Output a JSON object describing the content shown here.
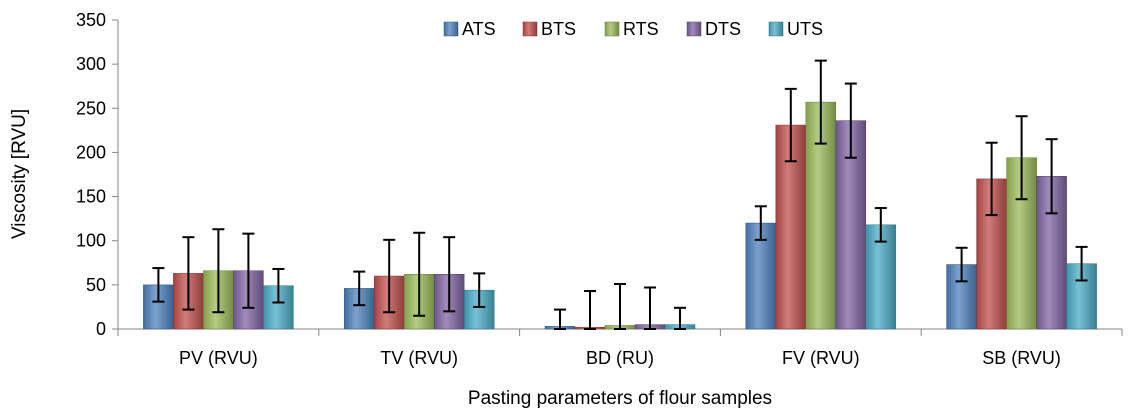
{
  "chart_data": {
    "type": "bar",
    "title": "",
    "xlabel": "Pasting parameters of flour samples",
    "ylabel": "Viscosity [RVU]",
    "ylim": [
      0,
      350
    ],
    "yticks": [
      0,
      50,
      100,
      150,
      200,
      250,
      300,
      350
    ],
    "grid": false,
    "legend_position": "top-center",
    "categories": [
      "PV (RVU)",
      "TV (RVU)",
      "BD (RU)",
      "FV (RVU)",
      "SB (RVU)"
    ],
    "series": [
      {
        "name": "ATS",
        "color": "#4F81BD",
        "values": [
          50,
          46,
          3,
          120,
          73
        ],
        "errors": [
          19,
          19,
          19,
          19,
          19
        ]
      },
      {
        "name": "BTS",
        "color": "#C0504D",
        "values": [
          63,
          60,
          2,
          231,
          170
        ],
        "errors": [
          41,
          41,
          41,
          41,
          41
        ]
      },
      {
        "name": "RTS",
        "color": "#9BBB59",
        "values": [
          66,
          62,
          4,
          257,
          194
        ],
        "errors": [
          47,
          47,
          47,
          47,
          47
        ]
      },
      {
        "name": "DTS",
        "color": "#8064A2",
        "values": [
          66,
          62,
          5,
          236,
          173
        ],
        "errors": [
          42,
          42,
          42,
          42,
          42
        ]
      },
      {
        "name": "UTS",
        "color": "#4BACC6",
        "values": [
          49,
          44,
          5,
          118,
          74
        ],
        "errors": [
          19,
          19,
          19,
          19,
          19
        ]
      }
    ]
  }
}
